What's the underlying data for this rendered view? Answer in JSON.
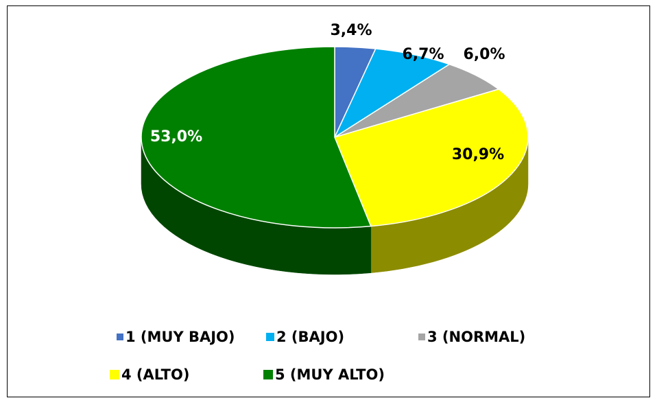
{
  "chart_data": {
    "type": "pie",
    "categories": [
      "1 (MUY BAJO)",
      "2 (BAJO)",
      "3 (NORMAL)",
      "4 (ALTO)",
      "5 (MUY ALTO)"
    ],
    "values": [
      3.4,
      6.7,
      6.0,
      30.9,
      53.0
    ],
    "value_labels": [
      "3,4%",
      "6,7%",
      "6,0%",
      "30,9%",
      "53,0%"
    ],
    "colors": [
      "#4472c4",
      "#00b0f0",
      "#a5a5a5",
      "#ffff00",
      "#008000"
    ],
    "legend": "bottom"
  }
}
